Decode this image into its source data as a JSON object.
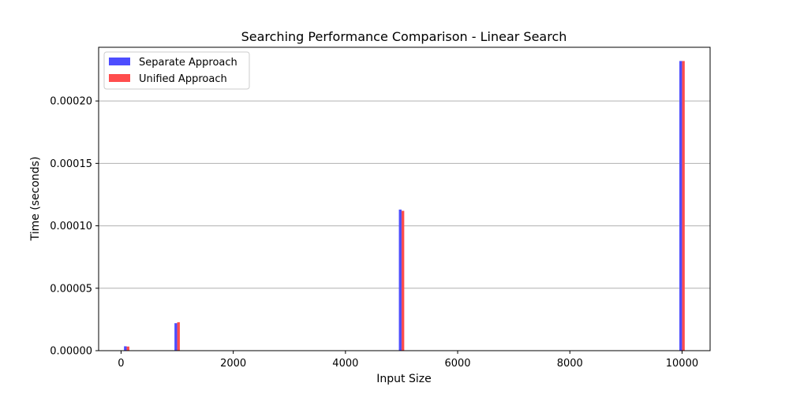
{
  "chart_data": {
    "type": "bar",
    "title": "Searching Performance Comparison - Linear Search",
    "xlabel": "Input Size",
    "ylabel": "Time (seconds)",
    "x": [
      100,
      1000,
      5000,
      10000
    ],
    "xlim": [
      -400,
      10500
    ],
    "ylim": [
      0,
      0.000243
    ],
    "xticks": [
      0,
      2000,
      4000,
      6000,
      8000,
      10000
    ],
    "xtick_labels": [
      "0",
      "2000",
      "4000",
      "6000",
      "8000",
      "10000"
    ],
    "yticks": [
      0,
      5e-05,
      0.0001,
      0.00015,
      0.0002
    ],
    "ytick_labels": [
      "0.00000",
      "0.00005",
      "0.00010",
      "0.00015",
      "0.00020"
    ],
    "grid": "horizontal",
    "legend_position": "top-left",
    "series": [
      {
        "name": "Separate Approach",
        "color": "#4d4dff",
        "values": [
          3.5e-06,
          2.2e-05,
          0.000113,
          0.000232
        ]
      },
      {
        "name": "Unified Approach",
        "color": "#ff4d4d",
        "values": [
          3.3e-06,
          2.28e-05,
          0.000112,
          0.000232
        ]
      }
    ]
  }
}
